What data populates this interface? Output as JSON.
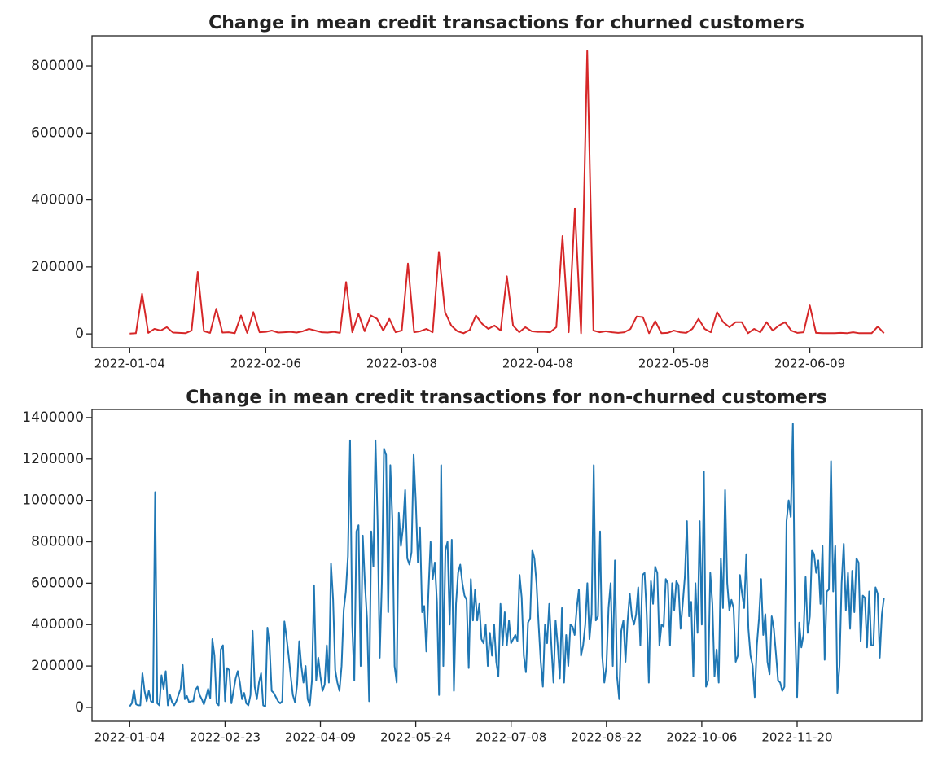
{
  "chart_data": [
    {
      "type": "line",
      "title": "Change in mean credit transactions for churned customers",
      "color": "#d62728",
      "categories": [
        "2022-01-04",
        null,
        null,
        null,
        null,
        null,
        null,
        null,
        null,
        null,
        null,
        null,
        null,
        null,
        null,
        null,
        null,
        null,
        null,
        null,
        null,
        null,
        "2022-02-06",
        null,
        null,
        null,
        null,
        null,
        null,
        null,
        null,
        null,
        null,
        null,
        null,
        null,
        null,
        null,
        null,
        null,
        null,
        null,
        null,
        null,
        "2022-03-08",
        null,
        null,
        null,
        null,
        null,
        null,
        null,
        null,
        null,
        null,
        null,
        null,
        null,
        null,
        null,
        null,
        null,
        null,
        null,
        null,
        null,
        "2022-04-08",
        null,
        null,
        null,
        null,
        null,
        null,
        null,
        null,
        null,
        null,
        null,
        null,
        null,
        null,
        null,
        null,
        null,
        null,
        null,
        null,
        null,
        "2022-05-08",
        null,
        null,
        null,
        null,
        null,
        null,
        null,
        null,
        null,
        null,
        null,
        null,
        null,
        null,
        null,
        null,
        null,
        null,
        null,
        null,
        null,
        "2022-06-09",
        null,
        null,
        null,
        null,
        null,
        null,
        null,
        null,
        null,
        null,
        null,
        null
      ],
      "values": [
        1000,
        2000,
        120000,
        3000,
        15000,
        10000,
        20000,
        4000,
        3000,
        2000,
        10000,
        185000,
        8000,
        3000,
        75000,
        4000,
        5000,
        2000,
        55000,
        3000,
        65000,
        5000,
        6000,
        10000,
        4000,
        5000,
        6000,
        4000,
        8000,
        15000,
        10000,
        5000,
        4000,
        6000,
        3000,
        155000,
        5000,
        60000,
        8000,
        55000,
        45000,
        10000,
        45000,
        5000,
        10000,
        210000,
        5000,
        8000,
        15000,
        5000,
        245000,
        65000,
        25000,
        8000,
        2000,
        12000,
        55000,
        30000,
        15000,
        25000,
        10000,
        172000,
        25000,
        5000,
        20000,
        8000,
        6000,
        6000,
        5000,
        20000,
        292000,
        5000,
        375000,
        2000,
        845000,
        10000,
        5000,
        8000,
        5000,
        3000,
        5000,
        15000,
        52000,
        50000,
        2000,
        38000,
        2000,
        3000,
        10000,
        5000,
        3000,
        15000,
        45000,
        15000,
        5000,
        65000,
        35000,
        20000,
        35000,
        35000,
        2000,
        15000,
        5000,
        35000,
        10000,
        25000,
        35000,
        10000,
        3000,
        5000,
        85000,
        3000,
        2000,
        2000,
        2000,
        3000,
        2000,
        5000,
        2000,
        2000,
        2000,
        22000,
        2000
      ],
      "ylim": [
        -41000,
        890000
      ],
      "yticks": [
        0,
        200000,
        400000,
        600000,
        800000
      ]
    },
    {
      "type": "line",
      "title": "Change in mean credit transactions for non-churned customers",
      "color": "#1f77b4",
      "categories": [
        "2022-01-04",
        null,
        null,
        null,
        null,
        null,
        null,
        null,
        null,
        null,
        null,
        null,
        null,
        null,
        null,
        null,
        null,
        null,
        null,
        null,
        null,
        null,
        null,
        null,
        null,
        null,
        null,
        null,
        null,
        null,
        null,
        null,
        null,
        null,
        null,
        null,
        null,
        null,
        null,
        null,
        null,
        null,
        null,
        null,
        null,
        "2022-02-23",
        null,
        null,
        null,
        null,
        null,
        null,
        null,
        null,
        null,
        null,
        null,
        null,
        null,
        null,
        null,
        null,
        null,
        null,
        null,
        null,
        null,
        null,
        null,
        null,
        null,
        null,
        null,
        null,
        null,
        null,
        null,
        null,
        null,
        null,
        null,
        null,
        null,
        null,
        null,
        null,
        null,
        null,
        null,
        null,
        "2022-04-09",
        null,
        null,
        null,
        null,
        null,
        null,
        null,
        null,
        null,
        null,
        null,
        null,
        null,
        null,
        null,
        null,
        null,
        null,
        null,
        null,
        null,
        null,
        null,
        null,
        null,
        null,
        null,
        null,
        null,
        null,
        null,
        null,
        null,
        null,
        null,
        null,
        null,
        null,
        null,
        null,
        null,
        null,
        null,
        null,
        "2022-05-24",
        null,
        null,
        null,
        null,
        null,
        null,
        null,
        null,
        null,
        null,
        null,
        null,
        null,
        null,
        null,
        null,
        null,
        null,
        null,
        null,
        null,
        null,
        null,
        null,
        null,
        null,
        null,
        null,
        null,
        null,
        null,
        null,
        null,
        null,
        null,
        null,
        null,
        null,
        null,
        null,
        null,
        null,
        null,
        null,
        "2022-07-08",
        null,
        null,
        null,
        null,
        null,
        null,
        null,
        null,
        null,
        null,
        null,
        null,
        null,
        null,
        null,
        null,
        null,
        null,
        null,
        null,
        null,
        null,
        null,
        null,
        null,
        null,
        null,
        null,
        null,
        null,
        null,
        null,
        null,
        null,
        null,
        null,
        null,
        null,
        null,
        null,
        null,
        null,
        null,
        null,
        "2022-08-22",
        null,
        null,
        null,
        null,
        null,
        null,
        null,
        null,
        null,
        null,
        null,
        null,
        null,
        null,
        null,
        null,
        null,
        null,
        null,
        null,
        null,
        null,
        null,
        null,
        null,
        null,
        null,
        null,
        null,
        null,
        null,
        null,
        null,
        null,
        null,
        null,
        null,
        null,
        null,
        null,
        null,
        null,
        null,
        null,
        "2022-10-06",
        null,
        null,
        null,
        null,
        null,
        null,
        null,
        null,
        null,
        null,
        null,
        null,
        null,
        null,
        null,
        null,
        null,
        null,
        null,
        null,
        null,
        null,
        null,
        null,
        null,
        null,
        null,
        null,
        null,
        null,
        null,
        null,
        null,
        null,
        null,
        null,
        null,
        null,
        null,
        null,
        null,
        null,
        null,
        null,
        "2022-11-20",
        null,
        null,
        null,
        null,
        null,
        null,
        null,
        null,
        null,
        null,
        null,
        null,
        null,
        null,
        null,
        null,
        null,
        null,
        null,
        null,
        null,
        null,
        null,
        null,
        null,
        null,
        null,
        null,
        null,
        null,
        null,
        null,
        null,
        null,
        null,
        null,
        null,
        null,
        null,
        null,
        null
      ],
      "values": [
        5000,
        20000,
        85000,
        15000,
        10000,
        10000,
        165000,
        80000,
        30000,
        80000,
        30000,
        25000,
        1040000,
        20000,
        10000,
        155000,
        90000,
        175000,
        10000,
        60000,
        25000,
        10000,
        30000,
        60000,
        90000,
        205000,
        40000,
        55000,
        25000,
        30000,
        30000,
        85000,
        100000,
        60000,
        40000,
        15000,
        50000,
        90000,
        45000,
        330000,
        250000,
        20000,
        10000,
        280000,
        300000,
        30000,
        190000,
        180000,
        20000,
        80000,
        140000,
        175000,
        120000,
        40000,
        70000,
        20000,
        10000,
        60000,
        370000,
        100000,
        40000,
        120000,
        165000,
        10000,
        5000,
        385000,
        300000,
        80000,
        70000,
        50000,
        30000,
        20000,
        30000,
        415000,
        340000,
        250000,
        150000,
        60000,
        25000,
        110000,
        320000,
        200000,
        120000,
        200000,
        40000,
        10000,
        130000,
        590000,
        130000,
        240000,
        150000,
        80000,
        110000,
        300000,
        120000,
        695000,
        520000,
        180000,
        120000,
        80000,
        200000,
        470000,
        560000,
        730000,
        1290000,
        400000,
        130000,
        850000,
        880000,
        200000,
        830000,
        600000,
        430000,
        30000,
        850000,
        680000,
        1290000,
        900000,
        240000,
        600000,
        1250000,
        1220000,
        460000,
        1170000,
        900000,
        200000,
        120000,
        940000,
        780000,
        870000,
        1050000,
        720000,
        690000,
        750000,
        1220000,
        1000000,
        700000,
        870000,
        460000,
        490000,
        270000,
        560000,
        800000,
        620000,
        700000,
        510000,
        60000,
        1170000,
        200000,
        760000,
        800000,
        400000,
        810000,
        80000,
        500000,
        650000,
        690000,
        600000,
        540000,
        520000,
        190000,
        620000,
        420000,
        570000,
        420000,
        500000,
        330000,
        310000,
        400000,
        200000,
        360000,
        250000,
        400000,
        220000,
        150000,
        500000,
        300000,
        460000,
        300000,
        420000,
        310000,
        330000,
        350000,
        320000,
        640000,
        530000,
        250000,
        170000,
        410000,
        430000,
        760000,
        720000,
        600000,
        400000,
        220000,
        100000,
        400000,
        310000,
        500000,
        300000,
        120000,
        420000,
        300000,
        140000,
        480000,
        120000,
        350000,
        200000,
        400000,
        390000,
        350000,
        480000,
        570000,
        250000,
        300000,
        400000,
        600000,
        330000,
        450000,
        1170000,
        420000,
        440000,
        850000,
        250000,
        120000,
        200000,
        480000,
        600000,
        200000,
        710000,
        150000,
        40000,
        370000,
        420000,
        220000,
        420000,
        550000,
        440000,
        400000,
        450000,
        580000,
        300000,
        640000,
        650000,
        450000,
        120000,
        610000,
        500000,
        680000,
        650000,
        300000,
        400000,
        390000,
        620000,
        600000,
        300000,
        600000,
        470000,
        610000,
        590000,
        380000,
        500000,
        630000,
        900000,
        440000,
        510000,
        150000,
        600000,
        360000,
        900000,
        400000,
        1140000,
        100000,
        130000,
        650000,
        500000,
        150000,
        280000,
        120000,
        720000,
        480000,
        1050000,
        600000,
        470000,
        520000,
        480000,
        220000,
        250000,
        640000,
        550000,
        480000,
        740000,
        380000,
        250000,
        200000,
        50000,
        300000,
        430000,
        620000,
        350000,
        450000,
        220000,
        160000,
        440000,
        380000,
        260000,
        130000,
        120000,
        80000,
        100000,
        900000,
        1000000,
        920000,
        1370000,
        400000,
        50000,
        410000,
        290000,
        350000,
        630000,
        360000,
        440000,
        760000,
        740000,
        650000,
        710000,
        500000,
        780000,
        230000,
        560000,
        570000,
        1190000,
        560000,
        780000,
        70000,
        200000,
        600000,
        790000,
        470000,
        650000,
        380000,
        660000,
        460000,
        720000,
        700000,
        320000,
        540000,
        530000,
        290000,
        560000,
        300000,
        300000,
        580000,
        550000,
        240000,
        450000,
        530000
      ],
      "ylim": [
        -67000,
        1439000
      ],
      "yticks": [
        0,
        200000,
        400000,
        600000,
        800000,
        1000000,
        1200000,
        1400000
      ]
    }
  ]
}
